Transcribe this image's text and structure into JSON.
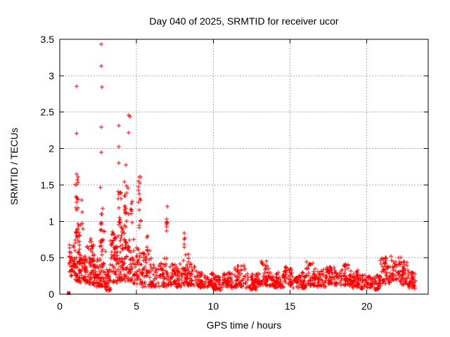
{
  "window": {
    "background": "#ffffff",
    "border_color": "#000000",
    "text_color": "#000000"
  },
  "chart_data": {
    "type": "scatter",
    "title": "Day 040 of 2025, SRMTID for receiver ucor",
    "xlabel": "GPS time / hours",
    "ylabel": "SRMTID / TECUs",
    "xlim": [
      0,
      24
    ],
    "ylim": [
      0,
      3.5
    ],
    "xticks": [
      0,
      5,
      10,
      15,
      20
    ],
    "yticks": [
      0,
      0.5,
      1,
      1.5,
      2,
      2.5,
      3,
      3.5
    ],
    "grid": {
      "show": true,
      "color": "#ababab",
      "dash": "2,2"
    },
    "marker": {
      "shape": "plus",
      "color": "#ff0000",
      "size": 7
    },
    "legend": "none",
    "seed": 20250040,
    "outlier_points": [
      [
        2.7,
        3.43
      ],
      [
        2.7,
        3.13
      ],
      [
        2.74,
        2.84
      ],
      [
        2.7,
        2.29
      ],
      [
        2.68,
        1.95
      ],
      [
        1.1,
        2.85
      ],
      [
        1.08,
        2.21
      ],
      [
        1.1,
        1.65
      ],
      [
        1.14,
        1.57
      ],
      [
        1.02,
        1.5
      ],
      [
        3.85,
        2.31
      ],
      [
        3.87,
        2.02
      ],
      [
        3.83,
        1.8
      ],
      [
        4.5,
        2.46
      ],
      [
        4.58,
        2.44
      ],
      [
        4.5,
        2.22
      ],
      [
        4.3,
        1.77
      ],
      [
        2.66,
        1.47
      ],
      [
        2.7,
        1.1
      ],
      [
        5.18,
        1.61
      ],
      [
        5.14,
        1.55
      ],
      [
        7.0,
        1.21
      ],
      [
        6.95,
        1.03
      ],
      [
        22.62,
        0.4
      ]
    ],
    "square_points": [
      [
        0.56,
        0.0
      ]
    ],
    "spike_columns": [
      [
        1.12,
        0.1,
        16,
        0.7,
        1.68,
        0.75
      ],
      [
        1.45,
        0.06,
        5,
        0.8,
        1.4,
        1.0
      ],
      [
        2.05,
        0.05,
        4,
        0.5,
        0.78,
        1.0
      ],
      [
        2.72,
        0.08,
        9,
        0.5,
        1.5,
        1.0
      ],
      [
        3.5,
        0.09,
        7,
        0.5,
        0.88,
        1.0
      ],
      [
        3.9,
        0.1,
        13,
        0.8,
        1.45,
        0.9
      ],
      [
        4.35,
        0.14,
        18,
        0.8,
        1.6,
        0.9
      ],
      [
        4.65,
        0.08,
        8,
        0.9,
        1.4,
        1.0
      ],
      [
        5.2,
        0.09,
        15,
        0.85,
        1.62,
        0.9
      ],
      [
        5.72,
        0.08,
        5,
        0.55,
        0.85,
        1.0
      ],
      [
        7.0,
        0.05,
        6,
        0.75,
        1.22,
        0.9
      ],
      [
        8.2,
        0.1,
        6,
        0.4,
        0.85,
        1.0
      ],
      [
        8.45,
        0.08,
        4,
        0.35,
        0.57,
        1.0
      ]
    ],
    "band_segments": [
      [
        0.6,
        1.0,
        38,
        0.25,
        0.72,
        1.5
      ],
      [
        1.0,
        1.3,
        48,
        0.18,
        0.95,
        1.4
      ],
      [
        1.3,
        1.8,
        50,
        0.15,
        0.55,
        1.5
      ],
      [
        1.8,
        2.2,
        45,
        0.14,
        0.78,
        1.8
      ],
      [
        2.2,
        2.6,
        45,
        0.1,
        0.55,
        1.7
      ],
      [
        2.6,
        3.0,
        45,
        0.1,
        0.92,
        2.1
      ],
      [
        3.0,
        3.3,
        30,
        0.05,
        0.35,
        1.4
      ],
      [
        3.3,
        3.7,
        40,
        0.15,
        0.85,
        2.0
      ],
      [
        3.7,
        4.2,
        52,
        0.18,
        0.92,
        1.7
      ],
      [
        4.2,
        4.8,
        55,
        0.18,
        0.8,
        1.6
      ],
      [
        4.8,
        5.4,
        50,
        0.14,
        0.7,
        1.7
      ],
      [
        5.4,
        6.2,
        55,
        0.1,
        0.6,
        1.7
      ],
      [
        6.2,
        7.2,
        60,
        0.1,
        0.5,
        1.6
      ],
      [
        7.2,
        8.0,
        55,
        0.1,
        0.42,
        1.5
      ],
      [
        8.0,
        9.0,
        65,
        0.12,
        0.48,
        1.6
      ],
      [
        9.0,
        10.0,
        65,
        0.09,
        0.3,
        1.3
      ],
      [
        10.0,
        10.6,
        40,
        0.06,
        0.25,
        1.3
      ],
      [
        10.6,
        11.4,
        50,
        0.09,
        0.3,
        1.3
      ],
      [
        11.4,
        12.1,
        45,
        0.1,
        0.4,
        1.5
      ],
      [
        12.1,
        12.8,
        42,
        0.06,
        0.28,
        1.3
      ],
      [
        12.8,
        13.1,
        20,
        0.1,
        0.32,
        1.3
      ],
      [
        13.1,
        13.6,
        34,
        0.12,
        0.47,
        1.5
      ],
      [
        13.6,
        14.6,
        60,
        0.09,
        0.3,
        1.3
      ],
      [
        14.6,
        15.2,
        40,
        0.1,
        0.38,
        1.4
      ],
      [
        15.2,
        16.0,
        50,
        0.08,
        0.3,
        1.3
      ],
      [
        16.0,
        16.5,
        32,
        0.12,
        0.45,
        1.5
      ],
      [
        16.5,
        17.3,
        50,
        0.1,
        0.35,
        1.4
      ],
      [
        17.3,
        18.0,
        45,
        0.12,
        0.4,
        1.5
      ],
      [
        18.0,
        18.8,
        50,
        0.12,
        0.42,
        1.5
      ],
      [
        18.8,
        19.6,
        50,
        0.09,
        0.33,
        1.4
      ],
      [
        19.6,
        20.3,
        42,
        0.08,
        0.28,
        1.3
      ],
      [
        20.3,
        20.9,
        38,
        0.05,
        0.26,
        1.3
      ],
      [
        20.9,
        21.5,
        42,
        0.14,
        0.52,
        1.5
      ],
      [
        21.5,
        22.2,
        46,
        0.18,
        0.55,
        1.5
      ],
      [
        22.2,
        22.7,
        36,
        0.12,
        0.45,
        1.4
      ],
      [
        22.7,
        23.2,
        34,
        0.07,
        0.32,
        1.3
      ]
    ]
  }
}
